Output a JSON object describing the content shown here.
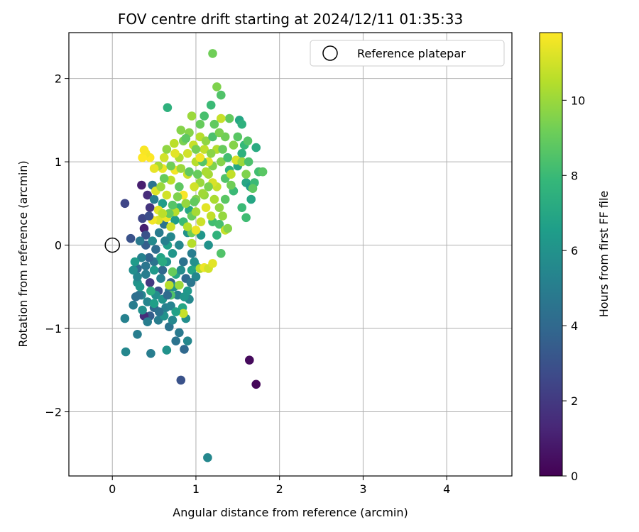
{
  "chart_data": {
    "type": "scatter",
    "title": "FOV centre drift starting at 2024/12/11 01:35:33",
    "xlabel": "Angular distance from reference (arcmin)",
    "ylabel": "Rotation from reference (arcmin)",
    "colorbar_label": "Hours from first FF file",
    "xlim": [
      -0.52,
      4.78
    ],
    "ylim": [
      -2.77,
      2.55
    ],
    "xticks": [
      0,
      1,
      2,
      3,
      4
    ],
    "yticks": [
      -2,
      -1,
      0,
      1,
      2
    ],
    "colorbar_range": [
      0,
      11.8
    ],
    "colorbar_ticks": [
      0,
      2,
      4,
      6,
      8,
      10
    ],
    "grid": true,
    "legend_placement": "top-right",
    "colormap": [
      "#440154",
      "#482878",
      "#3e4989",
      "#31688e",
      "#26828e",
      "#1f9e89",
      "#35b779",
      "#6ece58",
      "#b5de2b",
      "#fde725"
    ],
    "reference": {
      "label": "Reference platepar",
      "x": 0.0,
      "y": 0.0
    },
    "series": [
      {
        "name": "",
        "points": [
          [
            0.15,
            0.5,
            2.5
          ],
          [
            0.22,
            0.08,
            3.0
          ],
          [
            0.35,
            0.72,
            1.0
          ],
          [
            0.42,
            0.6,
            1.5
          ],
          [
            0.45,
            0.45,
            1.8
          ],
          [
            0.36,
            0.32,
            2.5
          ],
          [
            0.38,
            0.2,
            1.0
          ],
          [
            0.4,
            0.12,
            3.0
          ],
          [
            0.48,
            0.72,
            4.5
          ],
          [
            0.5,
            0.55,
            5.0
          ],
          [
            0.6,
            0.5,
            6.5
          ],
          [
            0.4,
            0.0,
            3.5
          ],
          [
            0.5,
            -0.2,
            4.5
          ],
          [
            0.45,
            -0.45,
            2.0
          ],
          [
            0.55,
            -0.55,
            3.0
          ],
          [
            0.6,
            -0.3,
            4.0
          ],
          [
            0.35,
            -0.6,
            5.5
          ],
          [
            0.52,
            -0.05,
            4.2
          ],
          [
            0.58,
            -0.4,
            5.2
          ],
          [
            0.65,
            -0.2,
            6.0
          ],
          [
            0.7,
            0.1,
            5.5
          ],
          [
            0.68,
            -0.55,
            4.8
          ],
          [
            0.72,
            -0.1,
            6.2
          ],
          [
            0.3,
            -0.28,
            4.0
          ],
          [
            0.62,
            0.25,
            4.5
          ],
          [
            0.44,
            -0.15,
            3.8
          ],
          [
            0.75,
            0.3,
            6.5
          ],
          [
            0.8,
            0.0,
            5.5
          ],
          [
            0.78,
            -0.6,
            5.0
          ],
          [
            0.85,
            -0.2,
            4.5
          ],
          [
            0.9,
            0.15,
            6.0
          ],
          [
            0.88,
            -0.4,
            4.0
          ],
          [
            0.92,
            -0.65,
            5.5
          ],
          [
            0.95,
            -0.3,
            6.8
          ],
          [
            0.3,
            -0.45,
            6.0
          ],
          [
            0.32,
            -0.6,
            4.5
          ],
          [
            0.5,
            -0.75,
            4.0
          ],
          [
            0.45,
            -0.85,
            3.5
          ],
          [
            0.38,
            -0.85,
            1.5
          ],
          [
            0.55,
            -0.9,
            5.0
          ],
          [
            0.62,
            -0.85,
            6.0
          ],
          [
            0.68,
            -0.98,
            4.5
          ],
          [
            0.72,
            -0.9,
            5.5
          ],
          [
            0.8,
            -1.05,
            4.8
          ],
          [
            0.88,
            -0.88,
            5.8
          ],
          [
            0.15,
            -0.88,
            5.2
          ],
          [
            0.25,
            -0.72,
            5.0
          ],
          [
            0.3,
            -1.07,
            5.0
          ],
          [
            0.16,
            -1.28,
            5.5
          ],
          [
            0.46,
            -1.3,
            5.0
          ],
          [
            0.65,
            -1.26,
            6.0
          ],
          [
            0.76,
            -1.15,
            4.5
          ],
          [
            0.86,
            -1.25,
            4.0
          ],
          [
            0.9,
            -1.15,
            5.5
          ],
          [
            0.82,
            -1.62,
            3.0
          ],
          [
            1.64,
            -1.38,
            0.3
          ],
          [
            1.72,
            -1.67,
            0.2
          ],
          [
            1.14,
            -2.55,
            5.5
          ],
          [
            0.52,
            -0.6,
            5.8
          ],
          [
            0.6,
            -0.65,
            6.1
          ],
          [
            0.4,
            -0.35,
            5.0
          ],
          [
            0.7,
            -0.45,
            3.5
          ],
          [
            0.58,
            -0.15,
            6.8
          ],
          [
            0.48,
            0.05,
            5.6
          ],
          [
            0.56,
            0.15,
            4.9
          ],
          [
            0.64,
            -0.75,
            5.2
          ],
          [
            0.84,
            -0.75,
            7.0
          ],
          [
            0.9,
            -0.55,
            6.3
          ],
          [
            0.76,
            -0.35,
            6.9
          ],
          [
            0.66,
            0.0,
            6.6
          ],
          [
            0.35,
            -0.15,
            5.2
          ],
          [
            0.27,
            -0.2,
            6.4
          ],
          [
            0.36,
            -0.78,
            5.9
          ],
          [
            0.42,
            -0.68,
            5.4
          ],
          [
            0.74,
            -0.5,
            6.0
          ],
          [
            0.82,
            -0.3,
            5.7
          ],
          [
            0.6,
            -0.2,
            7.2
          ],
          [
            0.5,
            -0.3,
            6.3
          ],
          [
            0.46,
            -0.55,
            7.4
          ],
          [
            0.63,
            0.05,
            5.1
          ],
          [
            0.95,
            -0.1,
            5.0
          ],
          [
            1.0,
            -0.25,
            7.0
          ],
          [
            1.06,
            0.12,
            6.2
          ],
          [
            1.15,
            0.0,
            6.0
          ],
          [
            1.0,
            -0.38,
            5.5
          ],
          [
            0.8,
            0.45,
            7.5
          ],
          [
            0.85,
            0.28,
            8.0
          ],
          [
            0.92,
            0.42,
            7.0
          ],
          [
            1.2,
            0.28,
            8.2
          ],
          [
            1.25,
            0.12,
            7.6
          ],
          [
            1.3,
            -0.1,
            8.5
          ],
          [
            1.05,
            -0.28,
            10.5
          ],
          [
            1.1,
            -0.27,
            11.5
          ],
          [
            1.15,
            -0.28,
            11.0
          ],
          [
            1.2,
            -0.22,
            11.3
          ],
          [
            0.85,
            -0.82,
            10.8
          ],
          [
            0.95,
            0.02,
            10.5
          ],
          [
            0.55,
            0.3,
            11.2
          ],
          [
            0.65,
            0.33,
            11.5
          ],
          [
            0.75,
            0.4,
            10.5
          ],
          [
            0.72,
            -0.32,
            9.0
          ],
          [
            0.8,
            -0.48,
            10.0
          ],
          [
            0.68,
            -0.48,
            10.5
          ],
          [
            0.7,
            -0.6,
            8.5
          ],
          [
            0.95,
            0.35,
            9.0
          ],
          [
            1.0,
            0.55,
            9.5
          ],
          [
            1.05,
            0.75,
            10.0
          ],
          [
            1.1,
            0.6,
            9.8
          ],
          [
            1.15,
            0.85,
            10.2
          ],
          [
            1.2,
            0.95,
            9.5
          ],
          [
            1.25,
            0.7,
            10.8
          ],
          [
            1.3,
            1.0,
            9.6
          ],
          [
            1.35,
            0.8,
            8.5
          ],
          [
            1.4,
            0.9,
            7.5
          ],
          [
            1.45,
            0.65,
            8.0
          ],
          [
            1.5,
            0.95,
            7.0
          ],
          [
            1.55,
            1.1,
            7.5
          ],
          [
            1.6,
            0.75,
            7.0
          ],
          [
            1.65,
            0.7,
            6.5
          ],
          [
            1.7,
            0.75,
            8.0
          ],
          [
            1.72,
            1.17,
            7.2
          ],
          [
            1.75,
            0.88,
            8.2
          ],
          [
            1.8,
            0.88,
            8.7
          ],
          [
            1.55,
            0.45,
            8.0
          ],
          [
            1.6,
            0.33,
            8.1
          ],
          [
            1.52,
            1.5,
            7.0
          ],
          [
            1.55,
            1.45,
            7.5
          ],
          [
            1.25,
            1.9,
            9.5
          ],
          [
            1.3,
            1.8,
            8.5
          ],
          [
            1.2,
            2.3,
            9.2
          ],
          [
            1.18,
            1.68,
            8.0
          ],
          [
            1.1,
            1.55,
            8.3
          ],
          [
            1.05,
            1.45,
            9.0
          ],
          [
            0.95,
            1.55,
            10.0
          ],
          [
            0.92,
            1.35,
            9.6
          ],
          [
            0.97,
            1.2,
            10.8
          ],
          [
            1.0,
            1.0,
            10.5
          ],
          [
            0.9,
            1.1,
            11.0
          ],
          [
            0.85,
            1.25,
            9.4
          ],
          [
            0.8,
            1.05,
            10.4
          ],
          [
            0.75,
            0.9,
            11.6
          ],
          [
            0.7,
            0.78,
            10.6
          ],
          [
            0.65,
            0.6,
            11.0
          ],
          [
            0.6,
            0.92,
            11.5
          ],
          [
            0.55,
            0.95,
            10.2
          ],
          [
            0.5,
            0.92,
            11.4
          ],
          [
            0.45,
            1.05,
            11.8
          ],
          [
            0.4,
            1.1,
            11.6
          ],
          [
            0.36,
            1.05,
            11.9
          ],
          [
            0.38,
            1.14,
            11.7
          ],
          [
            0.52,
            0.65,
            11.2
          ],
          [
            0.58,
            0.7,
            10.0
          ],
          [
            0.62,
            1.05,
            11.0
          ],
          [
            1.35,
            1.3,
            9.2
          ],
          [
            1.4,
            1.52,
            8.9
          ],
          [
            1.45,
            1.2,
            9.6
          ],
          [
            1.5,
            1.3,
            8.7
          ],
          [
            1.58,
            1.2,
            7.9
          ],
          [
            1.62,
            1.25,
            8.6
          ],
          [
            1.66,
            0.55,
            7.0
          ],
          [
            1.3,
            1.52,
            10.8
          ],
          [
            1.28,
            0.45,
            9.8
          ],
          [
            1.22,
            0.55,
            10.3
          ],
          [
            1.18,
            0.35,
            10.7
          ],
          [
            1.12,
            0.45,
            11.3
          ],
          [
            1.06,
            0.28,
            10.9
          ],
          [
            1.0,
            0.4,
            10.2
          ],
          [
            1.2,
            0.75,
            11.1
          ],
          [
            1.25,
            1.15,
            10.4
          ],
          [
            1.1,
            1.15,
            10.7
          ],
          [
            1.05,
            1.3,
            10.5
          ],
          [
            1.15,
            1.0,
            11.4
          ],
          [
            0.98,
            0.7,
            11.0
          ],
          [
            0.85,
            0.6,
            11.7
          ],
          [
            0.9,
            0.85,
            10.9
          ],
          [
            0.75,
            1.1,
            11.3
          ],
          [
            0.7,
            0.95,
            9.2
          ],
          [
            0.65,
            1.15,
            9.8
          ],
          [
            0.62,
            0.8,
            9.0
          ],
          [
            0.8,
            0.7,
            8.8
          ],
          [
            0.88,
            0.5,
            9.9
          ],
          [
            0.92,
            0.88,
            8.8
          ],
          [
            1.02,
            0.85,
            9.0
          ],
          [
            1.08,
            1.0,
            8.6
          ],
          [
            1.12,
            1.25,
            9.8
          ],
          [
            1.2,
            1.3,
            8.4
          ],
          [
            1.22,
            1.45,
            8.9
          ],
          [
            1.28,
            1.35,
            9.4
          ],
          [
            1.32,
            1.15,
            9.0
          ],
          [
            1.38,
            1.05,
            8.2
          ],
          [
            1.42,
            0.72,
            9.2
          ],
          [
            1.35,
            0.55,
            8.7
          ],
          [
            1.32,
            0.35,
            9.9
          ],
          [
            1.28,
            0.25,
            8.3
          ],
          [
            0.95,
            0.15,
            9.2
          ],
          [
            0.9,
            0.22,
            10.5
          ],
          [
            1.0,
            0.18,
            11.5
          ],
          [
            1.08,
            0.62,
            10.1
          ],
          [
            1.15,
            0.7,
            9.4
          ],
          [
            0.82,
            0.92,
            10.0
          ],
          [
            0.78,
            0.58,
            9.5
          ],
          [
            0.72,
            0.48,
            8.6
          ],
          [
            0.68,
            0.38,
            9.0
          ],
          [
            0.74,
            1.22,
            10.6
          ],
          [
            0.82,
            1.38,
            9.6
          ],
          [
            0.88,
            1.28,
            8.8
          ],
          [
            1.0,
            1.15,
            9.3
          ],
          [
            1.05,
            1.05,
            11.6
          ],
          [
            1.12,
            0.88,
            10.3
          ],
          [
            1.18,
            1.1,
            9.7
          ],
          [
            0.98,
            0.52,
            8.9
          ],
          [
            0.66,
            1.65,
            7.5
          ],
          [
            0.55,
            0.42,
            11.3
          ],
          [
            0.48,
            0.3,
            11.6
          ],
          [
            0.6,
            0.38,
            10.6
          ],
          [
            0.7,
            0.22,
            10.9
          ],
          [
            1.35,
            0.18,
            10.8
          ],
          [
            1.38,
            0.2,
            9.6
          ],
          [
            1.42,
            0.85,
            10.7
          ],
          [
            1.48,
            1.02,
            11.1
          ],
          [
            1.55,
            1.0,
            10.0
          ],
          [
            1.6,
            0.85,
            9.5
          ],
          [
            1.63,
            1.0,
            8.4
          ],
          [
            1.68,
            0.68,
            8.8
          ],
          [
            0.5,
            -0.7,
            6.6
          ],
          [
            0.42,
            -0.92,
            5.0
          ],
          [
            0.56,
            -0.8,
            4.4
          ],
          [
            0.66,
            -0.6,
            4.1
          ],
          [
            0.7,
            -0.73,
            5.3
          ],
          [
            0.76,
            -0.8,
            6.7
          ],
          [
            0.86,
            -0.62,
            6.2
          ],
          [
            0.94,
            -0.45,
            4.7
          ],
          [
            0.98,
            -0.2,
            5.9
          ],
          [
            0.3,
            -0.38,
            5.4
          ],
          [
            0.33,
            -0.5,
            6.2
          ],
          [
            0.4,
            -0.25,
            4.6
          ],
          [
            0.25,
            -0.3,
            5.8
          ],
          [
            0.28,
            -0.62,
            4.3
          ],
          [
            0.33,
            0.05,
            4.8
          ],
          [
            0.44,
            0.35,
            2.8
          ]
        ]
      }
    ]
  }
}
